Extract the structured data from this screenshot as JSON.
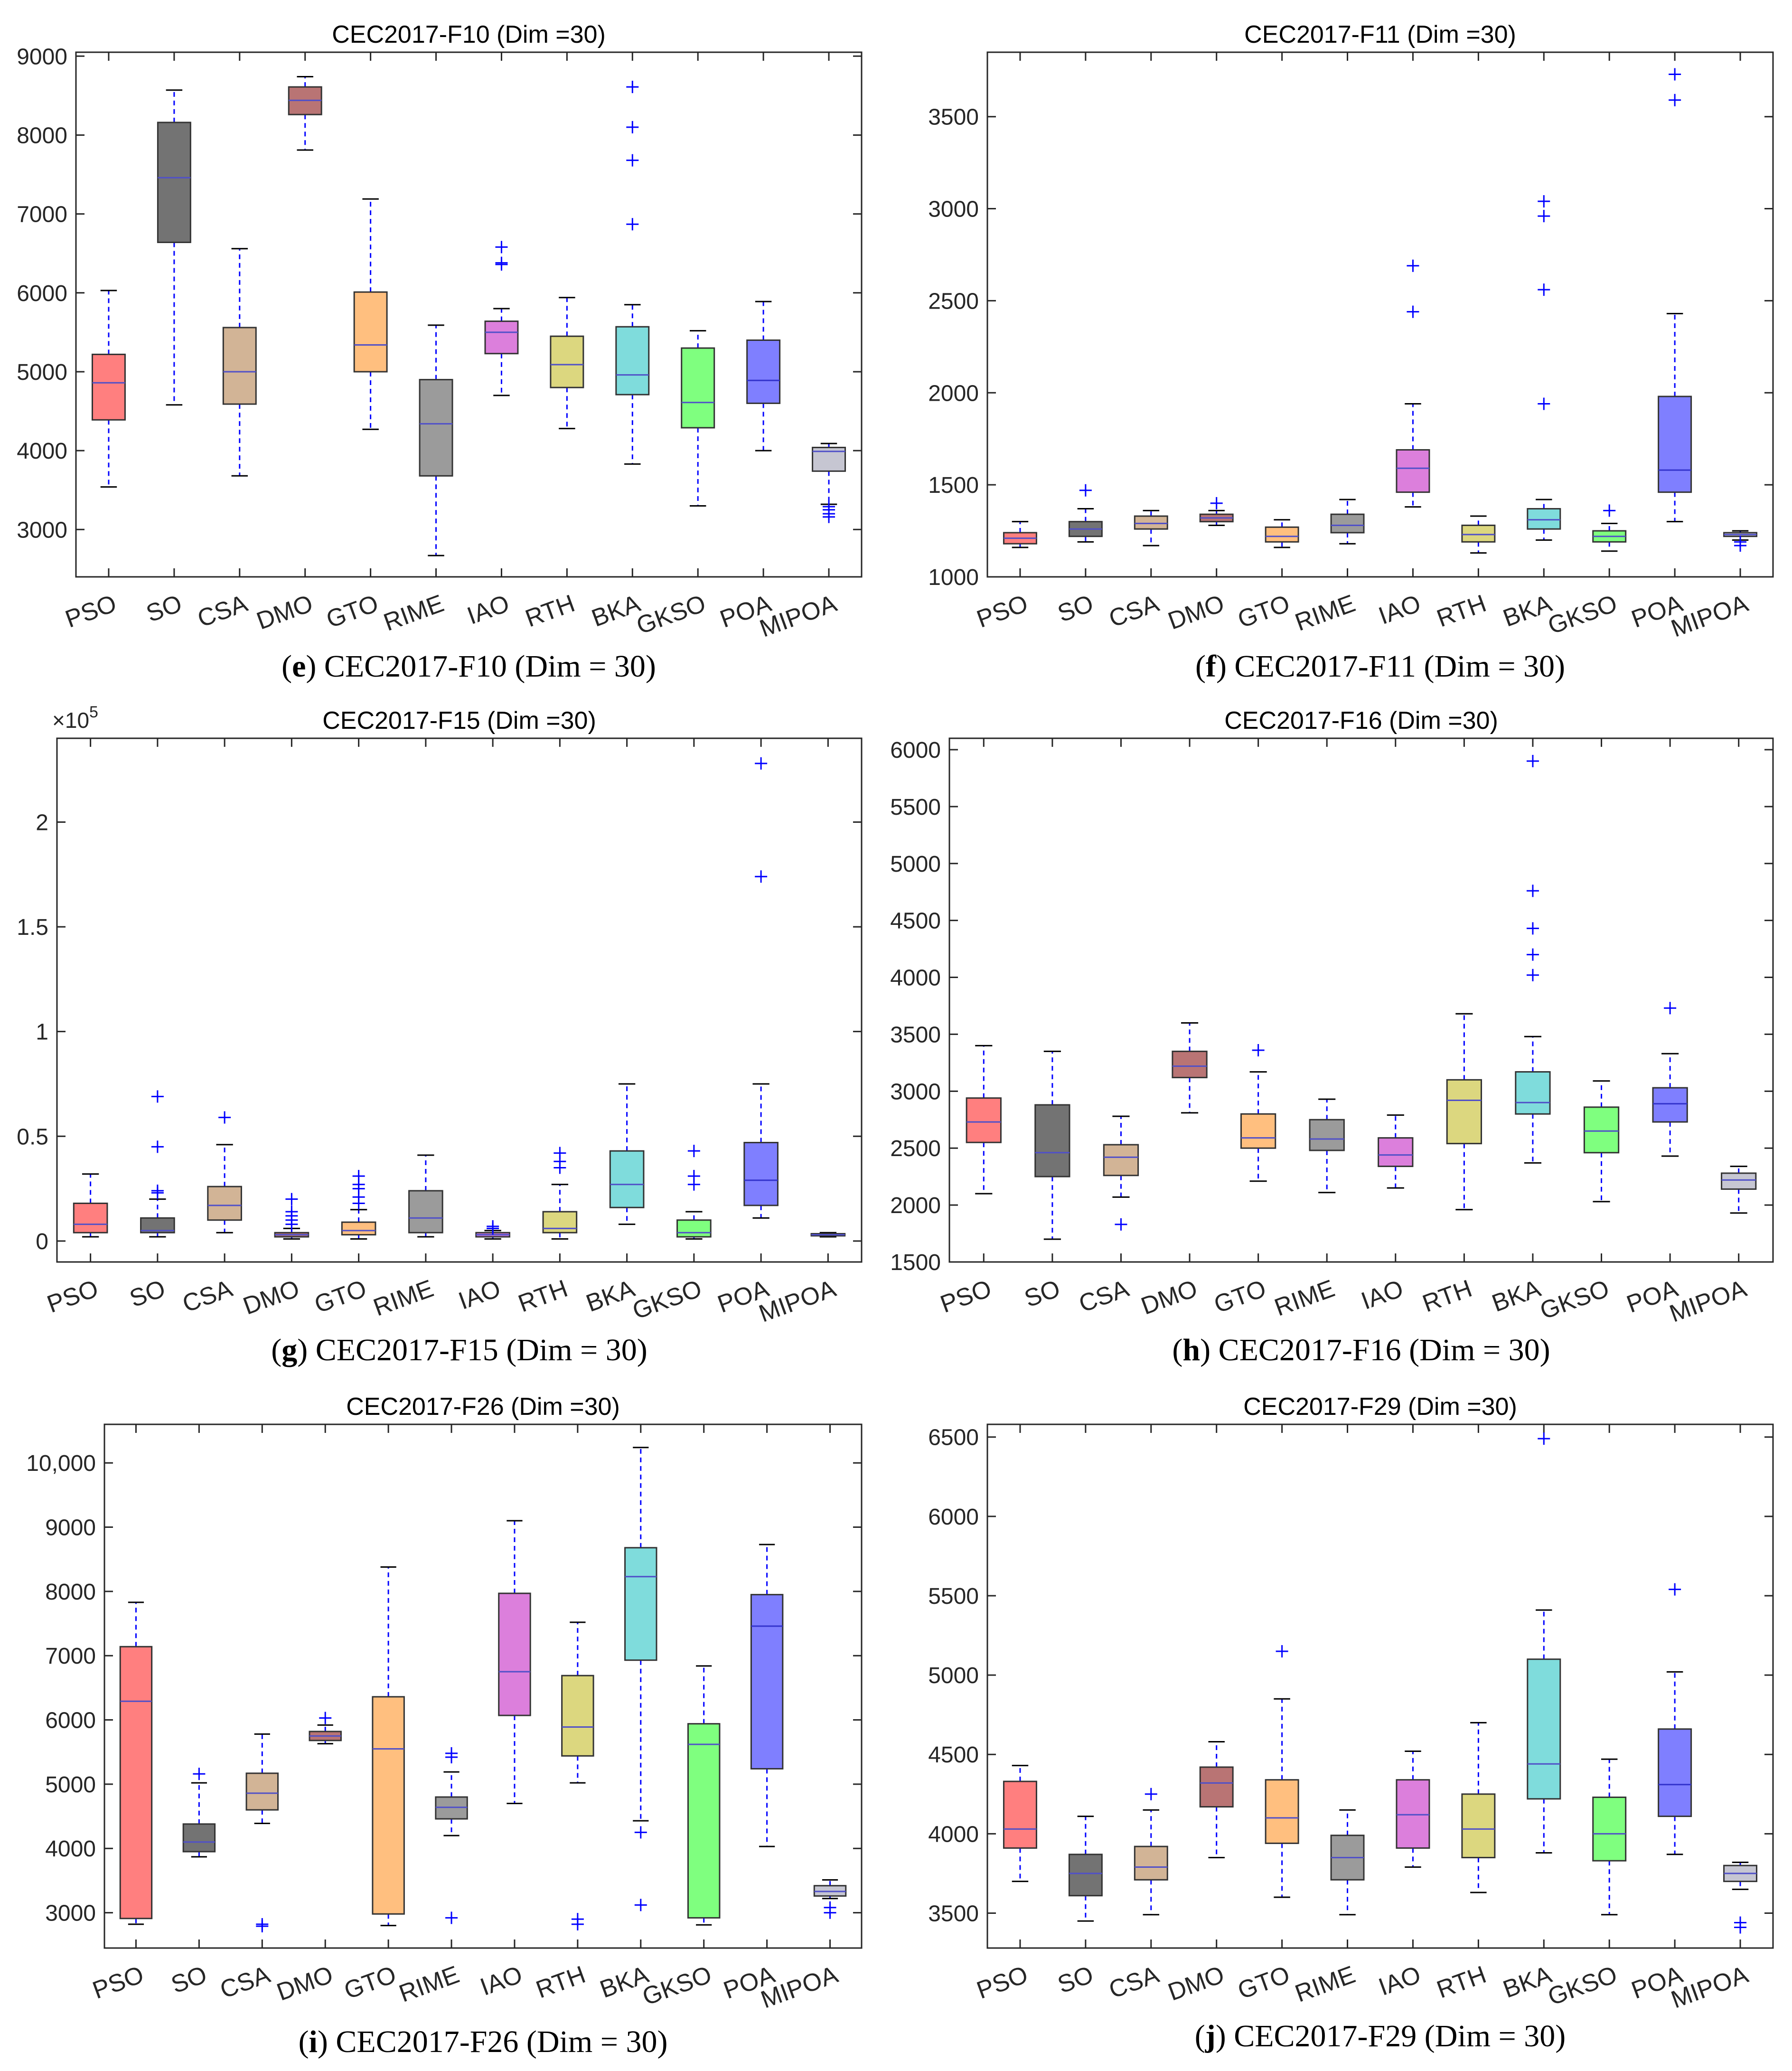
{
  "figure": {
    "categories": [
      "PSO",
      "SO",
      "CSA",
      "DMO",
      "GTO",
      "RIME",
      "IAO",
      "RTH",
      "BKA",
      "GKSO",
      "POA",
      "MIPOA"
    ],
    "colors": [
      "#ff7f7f",
      "#737373",
      "#d2b496",
      "#b97474",
      "#ffbf7f",
      "#9b9b9b",
      "#dc7fdc",
      "#dcd77f",
      "#7fdcdc",
      "#7fff7f",
      "#7f7fff",
      "#c6c6d2"
    ]
  },
  "chart_data": [
    {
      "type": "box",
      "panel": "e",
      "title": "CEC2017-F10 (Dim =30)",
      "caption_letter": "e",
      "caption_text": " CEC2017-F10 (Dim = 30)",
      "ylim": [
        2400,
        9050
      ],
      "yticks": [
        3000,
        4000,
        5000,
        6000,
        7000,
        8000,
        9000
      ],
      "ytick_labels": [
        "3000",
        "4000",
        "5000",
        "6000",
        "7000",
        "8000",
        "9000"
      ],
      "boxes": [
        {
          "wl": 3540,
          "q1": 4390,
          "med": 4860,
          "q3": 5220,
          "wh": 6030,
          "out": []
        },
        {
          "wl": 4580,
          "q1": 6640,
          "med": 7460,
          "q3": 8160,
          "wh": 8570,
          "out": []
        },
        {
          "wl": 3680,
          "q1": 4590,
          "med": 5000,
          "q3": 5560,
          "wh": 6560,
          "out": []
        },
        {
          "wl": 7810,
          "q1": 8260,
          "med": 8440,
          "q3": 8610,
          "wh": 8740,
          "out": []
        },
        {
          "wl": 4270,
          "q1": 5000,
          "med": 5340,
          "q3": 6010,
          "wh": 7190,
          "out": []
        },
        {
          "wl": 2670,
          "q1": 3680,
          "med": 4340,
          "q3": 4900,
          "wh": 5590,
          "out": []
        },
        {
          "wl": 4700,
          "q1": 5230,
          "med": 5500,
          "q3": 5640,
          "wh": 5800,
          "out": [
            6360,
            6380,
            6580
          ]
        },
        {
          "wl": 4280,
          "q1": 4800,
          "med": 5090,
          "q3": 5450,
          "wh": 5940,
          "out": []
        },
        {
          "wl": 3830,
          "q1": 4710,
          "med": 4960,
          "q3": 5570,
          "wh": 5850,
          "out": [
            6870,
            7680,
            8100,
            8610
          ]
        },
        {
          "wl": 3300,
          "q1": 4290,
          "med": 4610,
          "q3": 5300,
          "wh": 5520,
          "out": []
        },
        {
          "wl": 4000,
          "q1": 4600,
          "med": 4890,
          "q3": 5400,
          "wh": 5890,
          "out": []
        },
        {
          "wl": 3320,
          "q1": 3740,
          "med": 3990,
          "q3": 4040,
          "wh": 4090,
          "out": [
            3160,
            3200,
            3250,
            3290
          ]
        }
      ]
    },
    {
      "type": "box",
      "panel": "f",
      "title": "CEC2017-F11 (Dim =30)",
      "caption_letter": "f",
      "caption_text": " CEC2017-F11 (Dim = 30)",
      "ylim": [
        1000,
        3850
      ],
      "yticks": [
        1000,
        1500,
        2000,
        2500,
        3000,
        3500
      ],
      "ytick_labels": [
        "1000",
        "1500",
        "2000",
        "2500",
        "3000",
        "3500"
      ],
      "boxes": [
        {
          "wl": 1160,
          "q1": 1180,
          "med": 1210,
          "q3": 1240,
          "wh": 1300,
          "out": []
        },
        {
          "wl": 1190,
          "q1": 1220,
          "med": 1260,
          "q3": 1300,
          "wh": 1370,
          "out": [
            1470
          ]
        },
        {
          "wl": 1170,
          "q1": 1260,
          "med": 1290,
          "q3": 1330,
          "wh": 1360,
          "out": []
        },
        {
          "wl": 1280,
          "q1": 1300,
          "med": 1320,
          "q3": 1340,
          "wh": 1360,
          "out": [
            1400
          ]
        },
        {
          "wl": 1160,
          "q1": 1190,
          "med": 1220,
          "q3": 1270,
          "wh": 1310,
          "out": []
        },
        {
          "wl": 1180,
          "q1": 1240,
          "med": 1280,
          "q3": 1340,
          "wh": 1420,
          "out": []
        },
        {
          "wl": 1380,
          "q1": 1460,
          "med": 1590,
          "q3": 1690,
          "wh": 1940,
          "out": [
            2440,
            2690
          ]
        },
        {
          "wl": 1130,
          "q1": 1190,
          "med": 1230,
          "q3": 1280,
          "wh": 1330,
          "out": []
        },
        {
          "wl": 1200,
          "q1": 1260,
          "med": 1310,
          "q3": 1370,
          "wh": 1420,
          "out": [
            1940,
            2560,
            2960,
            3040
          ]
        },
        {
          "wl": 1140,
          "q1": 1190,
          "med": 1220,
          "q3": 1250,
          "wh": 1290,
          "out": [
            1360
          ]
        },
        {
          "wl": 1300,
          "q1": 1460,
          "med": 1580,
          "q3": 1980,
          "wh": 2430,
          "out": [
            3590,
            3730
          ]
        },
        {
          "wl": 1200,
          "q1": 1220,
          "med": 1230,
          "q3": 1240,
          "wh": 1250,
          "out": [
            1170,
            1190
          ]
        }
      ]
    },
    {
      "type": "box",
      "panel": "g",
      "title": "CEC2017-F15 (Dim =30)",
      "caption_letter": "g",
      "caption_text": " CEC2017-F15 (Dim = 30)",
      "ylim": [
        -0.1,
        2.4
      ],
      "exponent_prefix": "×10",
      "exponent": "5",
      "yticks": [
        0,
        0.5,
        1,
        1.5,
        2
      ],
      "ytick_labels": [
        "0",
        "0.5",
        "1",
        "1.5",
        "2"
      ],
      "boxes": [
        {
          "wl": 0.02,
          "q1": 0.04,
          "med": 0.08,
          "q3": 0.18,
          "wh": 0.32,
          "out": []
        },
        {
          "wl": 0.02,
          "q1": 0.04,
          "med": 0.05,
          "q3": 0.11,
          "wh": 0.2,
          "out": [
            0.23,
            0.24,
            0.45,
            0.69
          ]
        },
        {
          "wl": 0.04,
          "q1": 0.1,
          "med": 0.17,
          "q3": 0.26,
          "wh": 0.46,
          "out": [
            0.59
          ]
        },
        {
          "wl": 0.01,
          "q1": 0.02,
          "med": 0.03,
          "q3": 0.04,
          "wh": 0.06,
          "out": [
            0.08,
            0.1,
            0.12,
            0.14,
            0.2
          ]
        },
        {
          "wl": 0.01,
          "q1": 0.03,
          "med": 0.05,
          "q3": 0.09,
          "wh": 0.15,
          "out": [
            0.18,
            0.21,
            0.25,
            0.27,
            0.31
          ]
        },
        {
          "wl": 0.02,
          "q1": 0.04,
          "med": 0.11,
          "q3": 0.24,
          "wh": 0.41,
          "out": []
        },
        {
          "wl": 0.01,
          "q1": 0.02,
          "med": 0.03,
          "q3": 0.04,
          "wh": 0.05,
          "out": [
            0.06,
            0.07
          ]
        },
        {
          "wl": 0.01,
          "q1": 0.04,
          "med": 0.06,
          "q3": 0.14,
          "wh": 0.27,
          "out": [
            0.35,
            0.38,
            0.42
          ]
        },
        {
          "wl": 0.08,
          "q1": 0.16,
          "med": 0.27,
          "q3": 0.43,
          "wh": 0.75,
          "out": []
        },
        {
          "wl": 0.01,
          "q1": 0.02,
          "med": 0.04,
          "q3": 0.1,
          "wh": 0.14,
          "out": [
            0.27,
            0.31,
            0.43
          ]
        },
        {
          "wl": 0.11,
          "q1": 0.17,
          "med": 0.29,
          "q3": 0.47,
          "wh": 0.75,
          "out": [
            1.74,
            2.28
          ]
        },
        {
          "wl": 0.02,
          "q1": 0.025,
          "med": 0.03,
          "q3": 0.035,
          "wh": 0.04,
          "out": []
        }
      ]
    },
    {
      "type": "box",
      "panel": "h",
      "title": "CEC2017-F16 (Dim =30)",
      "caption_letter": "h",
      "caption_text": " CEC2017-F16 (Dim = 30)",
      "ylim": [
        1500,
        6100
      ],
      "yticks": [
        1500,
        2000,
        2500,
        3000,
        3500,
        4000,
        4500,
        5000,
        5500,
        6000
      ],
      "ytick_labels": [
        "1500",
        "2000",
        "2500",
        "3000",
        "3500",
        "4000",
        "4500",
        "5000",
        "5500",
        "6000"
      ],
      "boxes": [
        {
          "wl": 2100,
          "q1": 2550,
          "med": 2730,
          "q3": 2940,
          "wh": 3400,
          "out": []
        },
        {
          "wl": 1700,
          "q1": 2250,
          "med": 2460,
          "q3": 2880,
          "wh": 3350,
          "out": []
        },
        {
          "wl": 2070,
          "q1": 2260,
          "med": 2420,
          "q3": 2530,
          "wh": 2780,
          "out": [
            1830
          ]
        },
        {
          "wl": 2810,
          "q1": 3120,
          "med": 3220,
          "q3": 3350,
          "wh": 3600,
          "out": []
        },
        {
          "wl": 2210,
          "q1": 2500,
          "med": 2590,
          "q3": 2800,
          "wh": 3170,
          "out": [
            3360
          ]
        },
        {
          "wl": 2110,
          "q1": 2480,
          "med": 2580,
          "q3": 2750,
          "wh": 2930,
          "out": []
        },
        {
          "wl": 2150,
          "q1": 2340,
          "med": 2440,
          "q3": 2590,
          "wh": 2790,
          "out": []
        },
        {
          "wl": 1960,
          "q1": 2540,
          "med": 2920,
          "q3": 3100,
          "wh": 3680,
          "out": []
        },
        {
          "wl": 2370,
          "q1": 2800,
          "med": 2900,
          "q3": 3170,
          "wh": 3480,
          "out": [
            4020,
            4200,
            4430,
            4760,
            5900
          ]
        },
        {
          "wl": 2030,
          "q1": 2460,
          "med": 2650,
          "q3": 2860,
          "wh": 3090,
          "out": []
        },
        {
          "wl": 2430,
          "q1": 2730,
          "med": 2890,
          "q3": 3030,
          "wh": 3330,
          "out": [
            3730
          ]
        },
        {
          "wl": 1930,
          "q1": 2140,
          "med": 2220,
          "q3": 2280,
          "wh": 2340,
          "out": []
        }
      ]
    },
    {
      "type": "box",
      "panel": "i",
      "title": "CEC2017-F26 (Dim =30)",
      "caption_letter": "i",
      "caption_text": " CEC2017-F26 (Dim = 30)",
      "ylim": [
        2450,
        10600
      ],
      "yticks": [
        3000,
        4000,
        5000,
        6000,
        7000,
        8000,
        9000,
        10000
      ],
      "ytick_labels": [
        "3000",
        "4000",
        "5000",
        "6000",
        "7000",
        "8000",
        "9000",
        "10,000"
      ],
      "boxes": [
        {
          "wl": 2820,
          "q1": 2910,
          "med": 6290,
          "q3": 7140,
          "wh": 7830,
          "out": []
        },
        {
          "wl": 3870,
          "q1": 3950,
          "med": 4100,
          "q3": 4380,
          "wh": 5020,
          "out": [
            5160
          ]
        },
        {
          "wl": 4390,
          "q1": 4600,
          "med": 4860,
          "q3": 5170,
          "wh": 5780,
          "out": [
            2790,
            2820
          ]
        },
        {
          "wl": 5630,
          "q1": 5680,
          "med": 5750,
          "q3": 5820,
          "wh": 5920,
          "out": [
            6030
          ]
        },
        {
          "wl": 2800,
          "q1": 2980,
          "med": 5550,
          "q3": 6360,
          "wh": 8380,
          "out": []
        },
        {
          "wl": 4200,
          "q1": 4460,
          "med": 4640,
          "q3": 4800,
          "wh": 5190,
          "out": [
            2920,
            5420,
            5480
          ]
        },
        {
          "wl": 4700,
          "q1": 6070,
          "med": 6750,
          "q3": 7970,
          "wh": 9100,
          "out": []
        },
        {
          "wl": 5020,
          "q1": 5440,
          "med": 5890,
          "q3": 6690,
          "wh": 7520,
          "out": [
            2820,
            2900
          ]
        },
        {
          "wl": 4430,
          "q1": 6930,
          "med": 8230,
          "q3": 8680,
          "wh": 10240,
          "out": [
            3120,
            4250
          ]
        },
        {
          "wl": 2810,
          "q1": 2920,
          "med": 5620,
          "q3": 5940,
          "wh": 6840,
          "out": []
        },
        {
          "wl": 4030,
          "q1": 5240,
          "med": 7460,
          "q3": 7950,
          "wh": 8730,
          "out": []
        },
        {
          "wl": 3220,
          "q1": 3260,
          "med": 3330,
          "q3": 3420,
          "wh": 3510,
          "out": [
            3000,
            3080
          ]
        }
      ]
    },
    {
      "type": "box",
      "panel": "j",
      "title": "CEC2017-F29 (Dim =30)",
      "caption_letter": "j",
      "caption_text": " CEC2017-F29 (Dim = 30)",
      "ylim": [
        3280,
        6580
      ],
      "yticks": [
        3500,
        4000,
        4500,
        5000,
        5500,
        6000,
        6500
      ],
      "ytick_labels": [
        "3500",
        "4000",
        "4500",
        "5000",
        "5500",
        "6000",
        "6500"
      ],
      "boxes": [
        {
          "wl": 3700,
          "q1": 3910,
          "med": 4030,
          "q3": 4330,
          "wh": 4430,
          "out": []
        },
        {
          "wl": 3450,
          "q1": 3610,
          "med": 3750,
          "q3": 3870,
          "wh": 4110,
          "out": []
        },
        {
          "wl": 3490,
          "q1": 3710,
          "med": 3790,
          "q3": 3920,
          "wh": 4150,
          "out": [
            4250
          ]
        },
        {
          "wl": 3850,
          "q1": 4170,
          "med": 4320,
          "q3": 4420,
          "wh": 4580,
          "out": []
        },
        {
          "wl": 3600,
          "q1": 3940,
          "med": 4100,
          "q3": 4340,
          "wh": 4850,
          "out": [
            5150
          ]
        },
        {
          "wl": 3490,
          "q1": 3710,
          "med": 3850,
          "q3": 3990,
          "wh": 4150,
          "out": []
        },
        {
          "wl": 3790,
          "q1": 3910,
          "med": 4120,
          "q3": 4340,
          "wh": 4520,
          "out": []
        },
        {
          "wl": 3630,
          "q1": 3850,
          "med": 4030,
          "q3": 4250,
          "wh": 4700,
          "out": []
        },
        {
          "wl": 3880,
          "q1": 4220,
          "med": 4440,
          "q3": 5100,
          "wh": 5410,
          "out": [
            6490
          ]
        },
        {
          "wl": 3490,
          "q1": 3830,
          "med": 4000,
          "q3": 4230,
          "wh": 4470,
          "out": []
        },
        {
          "wl": 3870,
          "q1": 4110,
          "med": 4310,
          "q3": 4660,
          "wh": 5020,
          "out": [
            5540
          ]
        },
        {
          "wl": 3650,
          "q1": 3700,
          "med": 3750,
          "q3": 3800,
          "wh": 3820,
          "out": [
            3410,
            3440
          ]
        }
      ]
    }
  ]
}
